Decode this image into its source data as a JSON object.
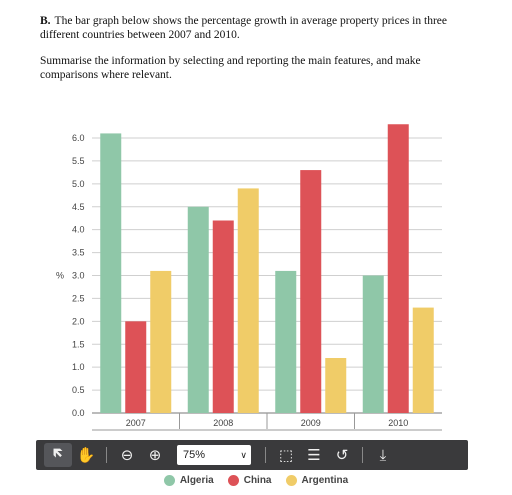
{
  "task": {
    "number": "B.",
    "line1": "The bar graph below shows the percentage growth in average property prices in three different countries between 2007 and 2010.",
    "line2": "Summarise the information by selecting and reporting the main features, and make comparisons where relevant."
  },
  "chart_data": {
    "type": "bar",
    "categories": [
      "2007",
      "2008",
      "2009",
      "2010"
    ],
    "series": [
      {
        "name": "Algeria",
        "color": "#8fc7a8",
        "values": [
          6.1,
          4.5,
          3.1,
          3.0
        ]
      },
      {
        "name": "China",
        "color": "#dd5257",
        "values": [
          2.0,
          4.2,
          5.3,
          6.3
        ]
      },
      {
        "name": "Argentina",
        "color": "#f0cc68",
        "values": [
          3.1,
          4.9,
          1.2,
          2.3
        ]
      }
    ],
    "ylabel": "%",
    "ylim": [
      0,
      6.0
    ],
    "yticks": [
      "0.0",
      "0.5",
      "1.0",
      "1.5",
      "2.0",
      "2.5",
      "3.0",
      "3.5",
      "4.0",
      "4.5",
      "5.0",
      "5.5",
      "6.0"
    ],
    "grid": true,
    "legend": "bottom"
  },
  "toolbar": {
    "zoom_value": "75%",
    "icons": [
      "select-pointer-icon",
      "hand-pan-icon",
      "zoom-out-icon",
      "zoom-in-icon",
      "fit-page-icon",
      "page-view-icon",
      "rotate-icon",
      "download-icon"
    ]
  }
}
